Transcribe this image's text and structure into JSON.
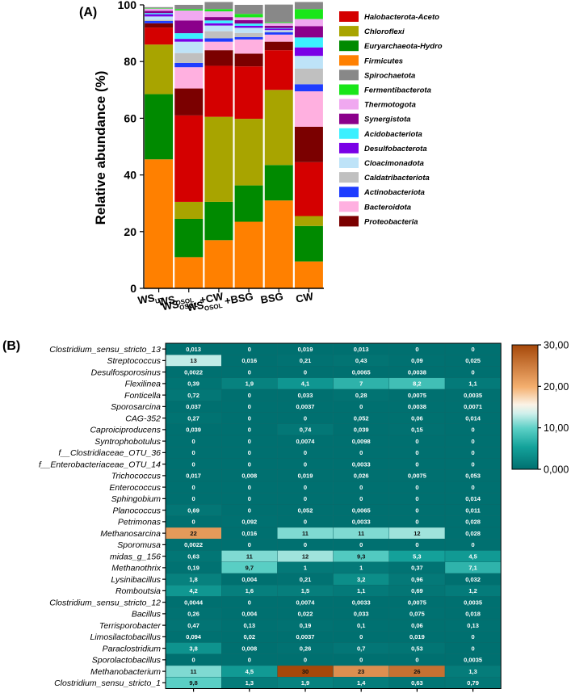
{
  "chart_data": [
    {
      "panel_label": "(A)",
      "type": "bar",
      "stacked": true,
      "ylabel": "Relative abundance (%)",
      "ylim": [
        0,
        100
      ],
      "yticks": [
        0,
        20,
        40,
        60,
        80,
        100
      ],
      "legend_position": "right",
      "categories": [
        {
          "main": "WS",
          "sub": "UT",
          "suffix": ""
        },
        {
          "main": "WS",
          "sub": "OSOL",
          "suffix": ""
        },
        {
          "main": "WS",
          "sub": "OSOL",
          "suffix": " +CW"
        },
        {
          "main": "WS",
          "sub": "OSOL",
          "suffix": " +BSG"
        },
        {
          "main": "BSG",
          "sub": "",
          "suffix": ""
        },
        {
          "main": "CW",
          "sub": "",
          "suffix": ""
        }
      ],
      "series": [
        {
          "name": "Firmicutes",
          "color": "#FF8000",
          "values": [
            45.5,
            11,
            17,
            23.5,
            31,
            9.5
          ]
        },
        {
          "name": "Euryarchaeota-Hydro",
          "color": "#008A00",
          "values": [
            23,
            13.5,
            13.5,
            12.8,
            12.5,
            12.5
          ]
        },
        {
          "name": "Chloroflexi",
          "color": "#A8A400",
          "values": [
            17.5,
            6,
            30,
            23.5,
            26.5,
            3.5
          ]
        },
        {
          "name": "Halobacterota-Aceto",
          "color": "#D40000",
          "values": [
            6,
            30.5,
            18,
            18.5,
            14,
            19
          ]
        },
        {
          "name": "Proteobacteria",
          "color": "#7B0000",
          "values": [
            1.5,
            9.5,
            5.5,
            4.5,
            3,
            12.5
          ]
        },
        {
          "name": "Bacteroidota",
          "color": "#FFB0E0",
          "values": [
            0,
            7.5,
            3,
            5,
            2.5,
            12.5
          ]
        },
        {
          "name": "Actinobacteriota",
          "color": "#1E3CFF",
          "values": [
            0.8,
            1.5,
            1.2,
            0.8,
            0.8,
            2.5
          ]
        },
        {
          "name": "Caldatribacteriota",
          "color": "#C0C0C0",
          "values": [
            0.4,
            3.5,
            2.5,
            1.5,
            0.3,
            5.5
          ]
        },
        {
          "name": "Cloacimonadota",
          "color": "#BEE3F8",
          "values": [
            1.2,
            4,
            2,
            1.8,
            0.5,
            4.5
          ]
        },
        {
          "name": "Desulfobacterota",
          "color": "#7A00E6",
          "values": [
            0.8,
            1,
            0.8,
            0.7,
            0.5,
            3
          ]
        },
        {
          "name": "Acidobacteriota",
          "color": "#3CF0FF",
          "values": [
            0.4,
            2,
            1,
            0.8,
            0.2,
            3.5
          ]
        },
        {
          "name": "Synergistota",
          "color": "#8B008B",
          "values": [
            0.8,
            4.5,
            1.2,
            1.2,
            0.8,
            4
          ]
        },
        {
          "name": "Thermotogota",
          "color": "#F0A8F0",
          "values": [
            0.8,
            3.5,
            2,
            1,
            1,
            2.5
          ]
        },
        {
          "name": "Fermentibacterota",
          "color": "#19E619",
          "values": [
            0.2,
            0.5,
            0.8,
            1.2,
            0.3,
            3.5
          ]
        },
        {
          "name": "Spirochaetota",
          "color": "#888888",
          "values": [
            0.3,
            1.5,
            2.5,
            3.2,
            6.2,
            2.5
          ]
        }
      ],
      "legend_order": [
        "Halobacterota-Aceto",
        "Chloroflexi",
        "Euryarchaeota-Hydro",
        "Firmicutes",
        "Spirochaetota",
        "Fermentibacterota",
        "Thermotogota",
        "Synergistota",
        "Acidobacteriota",
        "Desulfobacterota",
        "Cloacimonadota",
        "Caldatribacteriota",
        "Actinobacteriota",
        "Bacteroidota",
        "Proteobacteria"
      ]
    },
    {
      "panel_label": "(B)",
      "type": "heatmap",
      "colorbar_ticks": [
        "30,00",
        "20,00",
        "10,00",
        "0,000"
      ],
      "colorbar_range": [
        0,
        30
      ],
      "rows": [
        {
          "label": "Clostridium_sensu_stricto_13",
          "labels": [
            "0,013",
            "0",
            "0,019",
            "0,013",
            "0",
            "0"
          ],
          "values": [
            0.013,
            0,
            0.019,
            0.013,
            0,
            0
          ]
        },
        {
          "label": "Streptococcus",
          "labels": [
            "13",
            "0,016",
            "0,21",
            "0,43",
            "0,09",
            "0,025"
          ],
          "values": [
            13,
            0.016,
            0.21,
            0.43,
            0.09,
            0.025
          ]
        },
        {
          "label": "Desulfosporosinus",
          "labels": [
            "0,0022",
            "0",
            "0",
            "0,0065",
            "0,0038",
            "0"
          ],
          "values": [
            0.0022,
            0,
            0,
            0.0065,
            0.0038,
            0
          ]
        },
        {
          "label": "Flexilinea",
          "labels": [
            "0,39",
            "1,9",
            "4,1",
            "7",
            "8,2",
            "1,1"
          ],
          "values": [
            0.39,
            1.9,
            4.1,
            7,
            8.2,
            1.1
          ]
        },
        {
          "label": "Fonticella",
          "labels": [
            "0,72",
            "0",
            "0,033",
            "0,28",
            "0,0075",
            "0,0035"
          ],
          "values": [
            0.72,
            0,
            0.033,
            0.28,
            0.0075,
            0.0035
          ]
        },
        {
          "label": "Sporosarcina",
          "labels": [
            "0,037",
            "0",
            "0,0037",
            "0",
            "0,0038",
            "0,0071"
          ],
          "values": [
            0.037,
            0,
            0.0037,
            0,
            0.0038,
            0.0071
          ]
        },
        {
          "label": "CAG-352",
          "labels": [
            "0,27",
            "0",
            "0",
            "0,052",
            "0,06",
            "0,014"
          ],
          "values": [
            0.27,
            0,
            0,
            0.052,
            0.06,
            0.014
          ]
        },
        {
          "label": "Caproiciproducens",
          "labels": [
            "0,039",
            "0",
            "0,74",
            "0,039",
            "0,15",
            "0"
          ],
          "values": [
            0.039,
            0,
            0.74,
            0.039,
            0.15,
            0
          ]
        },
        {
          "label": "Syntrophobotulus",
          "labels": [
            "0",
            "0",
            "0,0074",
            "0,0098",
            "0",
            "0"
          ],
          "values": [
            0,
            0,
            0.0074,
            0.0098,
            0,
            0
          ]
        },
        {
          "label": "f__Clostridiaceae_OTU_36",
          "labels": [
            "0",
            "0",
            "0",
            "0",
            "0",
            "0"
          ],
          "values": [
            0,
            0,
            0,
            0,
            0,
            0
          ]
        },
        {
          "label": "f__Enterobacteriaceae_OTU_14",
          "labels": [
            "0",
            "0",
            "0",
            "0,0033",
            "0",
            "0"
          ],
          "values": [
            0,
            0,
            0,
            0.0033,
            0,
            0
          ]
        },
        {
          "label": "Trichococcus",
          "labels": [
            "0,017",
            "0,008",
            "0,019",
            "0,026",
            "0,0075",
            "0,053"
          ],
          "values": [
            0.017,
            0.008,
            0.019,
            0.026,
            0.0075,
            0.053
          ]
        },
        {
          "label": "Enterococcus",
          "labels": [
            "0",
            "0",
            "0",
            "0",
            "0",
            "0"
          ],
          "values": [
            0,
            0,
            0,
            0,
            0,
            0
          ]
        },
        {
          "label": "Sphingobium",
          "labels": [
            "0",
            "0",
            "0",
            "0",
            "0",
            "0,014"
          ],
          "values": [
            0,
            0,
            0,
            0,
            0,
            0.014
          ]
        },
        {
          "label": "Planococcus",
          "labels": [
            "0,69",
            "0",
            "0,052",
            "0,0065",
            "0",
            "0,011"
          ],
          "values": [
            0.69,
            0,
            0.052,
            0.0065,
            0,
            0.011
          ]
        },
        {
          "label": "Petrimonas",
          "labels": [
            "0",
            "0,092",
            "0",
            "0,0033",
            "0",
            "0,028"
          ],
          "values": [
            0,
            0.092,
            0,
            0.0033,
            0,
            0.028
          ]
        },
        {
          "label": "Methanosarcina",
          "labels": [
            "22",
            "0,016",
            "11",
            "11",
            "12",
            "0,028"
          ],
          "values": [
            22,
            0.016,
            11,
            11,
            12,
            0.028
          ]
        },
        {
          "label": "Sporomusa",
          "labels": [
            "0,0022",
            "0",
            "0",
            "0",
            "0",
            "0"
          ],
          "values": [
            0.0022,
            0,
            0,
            0,
            0,
            0
          ]
        },
        {
          "label": "midas_g_156",
          "labels": [
            "0,63",
            "11",
            "12",
            "9,3",
            "5,3",
            "4,5"
          ],
          "values": [
            0.63,
            11,
            12,
            9.3,
            5.3,
            4.5
          ]
        },
        {
          "label": "Methanothrix",
          "labels": [
            "0,19",
            "9,7",
            "1",
            "1",
            "0,37",
            "7,1"
          ],
          "values": [
            0.19,
            9.7,
            1,
            1,
            0.37,
            7.1
          ]
        },
        {
          "label": "Lysinibacillus",
          "labels": [
            "1,8",
            "0,004",
            "0,21",
            "3,2",
            "0,96",
            "0,032"
          ],
          "values": [
            1.8,
            0.004,
            0.21,
            3.2,
            0.96,
            0.032
          ]
        },
        {
          "label": "Romboutsia",
          "labels": [
            "4,2",
            "1,6",
            "1,5",
            "1,1",
            "0,69",
            "1,2"
          ],
          "values": [
            4.2,
            1.6,
            1.5,
            1.1,
            0.69,
            1.2
          ]
        },
        {
          "label": "Clostridium_sensu_stricto_12",
          "labels": [
            "0,0044",
            "0",
            "0,0074",
            "0,0033",
            "0,0075",
            "0,0035"
          ],
          "values": [
            0.0044,
            0,
            0.0074,
            0.0033,
            0.0075,
            0.0035
          ]
        },
        {
          "label": "Bacillus",
          "labels": [
            "0,26",
            "0,004",
            "0,022",
            "0,033",
            "0,075",
            "0,018"
          ],
          "values": [
            0.26,
            0.004,
            0.022,
            0.033,
            0.075,
            0.018
          ]
        },
        {
          "label": "Terrisporobacter",
          "labels": [
            "0,47",
            "0,13",
            "0,19",
            "0,1",
            "0,06",
            "0,13"
          ],
          "values": [
            0.47,
            0.13,
            0.19,
            0.1,
            0.06,
            0.13
          ]
        },
        {
          "label": "Limosilactobacillus",
          "labels": [
            "0,094",
            "0,02",
            "0,0037",
            "0",
            "0,019",
            "0"
          ],
          "values": [
            0.094,
            0.02,
            0.0037,
            0,
            0.019,
            0
          ]
        },
        {
          "label": "Paraclostridium",
          "labels": [
            "3,8",
            "0,008",
            "0,26",
            "0,7",
            "0,53",
            "0"
          ],
          "values": [
            3.8,
            0.008,
            0.26,
            0.7,
            0.53,
            0
          ]
        },
        {
          "label": "Sporolactobacillus",
          "labels": [
            "0",
            "0",
            "0",
            "0",
            "0",
            "0,0035"
          ],
          "values": [
            0,
            0,
            0,
            0,
            0,
            0.0035
          ]
        },
        {
          "label": "Methanobacterium",
          "labels": [
            "11",
            "4,5",
            "30",
            "23",
            "26",
            "1,3"
          ],
          "values": [
            11,
            4.5,
            30,
            23,
            26,
            1.3
          ]
        },
        {
          "label": "Clostridium_sensu_stricto_1",
          "labels": [
            "9,8",
            "1,3",
            "1,9",
            "1,4",
            "0,63",
            "0,79"
          ],
          "values": [
            9.8,
            1.3,
            1.9,
            1.4,
            0.63,
            0.79
          ]
        }
      ]
    }
  ]
}
